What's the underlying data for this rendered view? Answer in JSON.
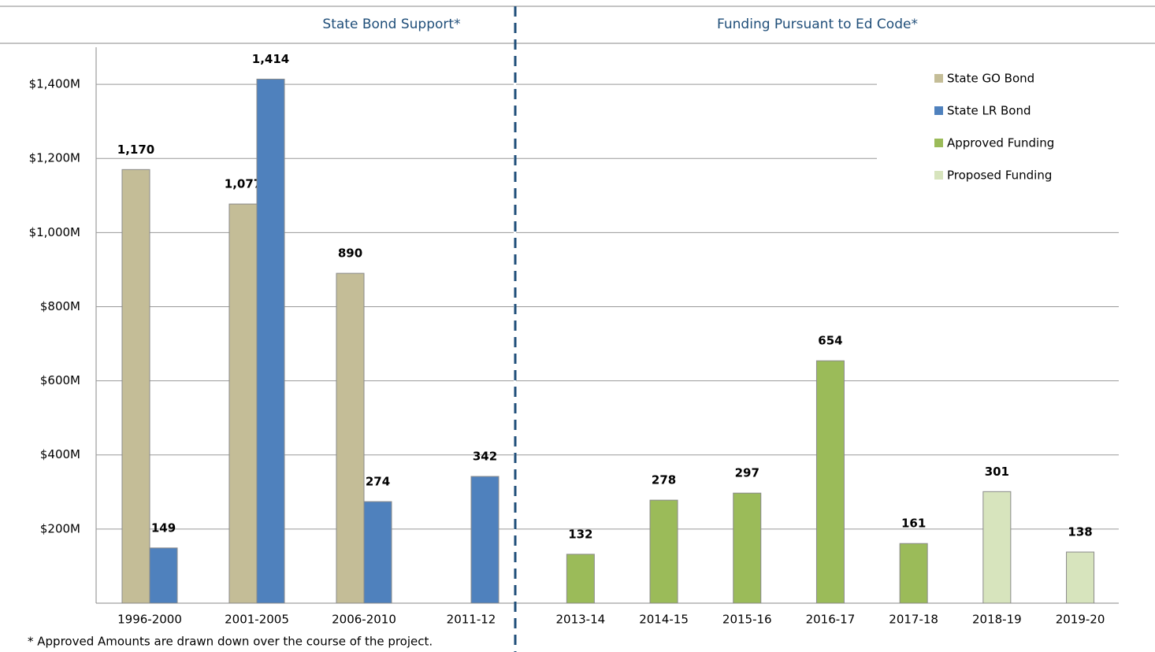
{
  "chart_data": [
    {
      "type": "bar",
      "title": "State Bond Support*",
      "categories": [
        "1996-2000",
        "2001-2005",
        "2006-2010",
        "2011-12"
      ],
      "series": [
        {
          "name": "State GO Bond",
          "color": "#c4bd97",
          "values": [
            1170,
            1077,
            890,
            null
          ],
          "value_labels": [
            "1,170",
            "1,077",
            "890",
            null
          ]
        },
        {
          "name": "State LR Bond",
          "color": "#4f81bd",
          "values": [
            149,
            1414,
            274,
            342
          ],
          "value_labels": [
            "149",
            "1,414",
            "274",
            "342"
          ]
        }
      ],
      "ylim": [
        0,
        1500
      ],
      "yticks": [
        {
          "value": 200,
          "label": "$200M"
        },
        {
          "value": 400,
          "label": "$400M"
        },
        {
          "value": 600,
          "label": "$600M"
        },
        {
          "value": 800,
          "label": "$800M"
        },
        {
          "value": 1000,
          "label": "$1,000M"
        },
        {
          "value": 1200,
          "label": "$1,200M"
        },
        {
          "value": 1400,
          "label": "$1,400M"
        }
      ],
      "grid": true
    },
    {
      "type": "bar",
      "title": "Funding Pursuant to Ed Code*",
      "categories": [
        "2013-14",
        "2014-15",
        "2015-16",
        "2016-17",
        "2017-18",
        "2018-19",
        "2019-20"
      ],
      "series": [
        {
          "name": "Approved Funding",
          "color": "#9bbb59",
          "values": [
            132,
            278,
            297,
            654,
            161,
            null,
            null
          ]
        },
        {
          "name": "Proposed Funding",
          "color": "#d7e4bd",
          "values": [
            null,
            null,
            null,
            null,
            null,
            301,
            138
          ]
        }
      ],
      "ylim": [
        0,
        1500
      ],
      "yticks": [
        200,
        400,
        600,
        800,
        1000,
        1200,
        1400
      ],
      "grid": true,
      "legend": "top-right"
    }
  ],
  "footnote": "* Approved Amounts are drawn down over the course of the project."
}
